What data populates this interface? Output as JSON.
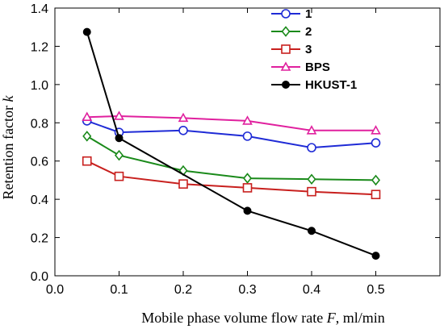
{
  "chart_data": {
    "type": "line",
    "xlabel_prefix": "Mobile phase volume flow rate ",
    "xlabel_var": "F",
    "xlabel_suffix": ", ml/min",
    "ylabel_prefix": "Retention factor ",
    "ylabel_var": "k",
    "xlim": [
      0.0,
      0.6
    ],
    "ylim": [
      0.0,
      1.4
    ],
    "xticks": [
      0.0,
      0.1,
      0.2,
      0.3,
      0.4,
      0.5
    ],
    "yticks": [
      0.0,
      0.2,
      0.4,
      0.6,
      0.8,
      1.0,
      1.2,
      1.4
    ],
    "grid": false,
    "legend_position": "top-right",
    "series": [
      {
        "name": "1",
        "color": "#1f2bd6",
        "marker": "circle-open",
        "x": [
          0.05,
          0.1,
          0.2,
          0.3,
          0.4,
          0.5
        ],
        "y": [
          0.81,
          0.75,
          0.76,
          0.73,
          0.67,
          0.695
        ]
      },
      {
        "name": "2",
        "color": "#1a8a1a",
        "marker": "diamond-open",
        "x": [
          0.05,
          0.1,
          0.2,
          0.3,
          0.4,
          0.5
        ],
        "y": [
          0.73,
          0.63,
          0.55,
          0.51,
          0.505,
          0.5
        ]
      },
      {
        "name": "3",
        "color": "#c8201e",
        "marker": "square-open",
        "x": [
          0.05,
          0.1,
          0.2,
          0.3,
          0.4,
          0.5
        ],
        "y": [
          0.6,
          0.52,
          0.48,
          0.46,
          0.44,
          0.425
        ]
      },
      {
        "name": "BPS",
        "color": "#e0209e",
        "marker": "triangle-open",
        "x": [
          0.05,
          0.1,
          0.2,
          0.3,
          0.4,
          0.5
        ],
        "y": [
          0.83,
          0.835,
          0.825,
          0.81,
          0.76,
          0.76
        ]
      },
      {
        "name": "HKUST-1",
        "color": "#000000",
        "marker": "circle-filled",
        "x": [
          0.05,
          0.1,
          0.3,
          0.4,
          0.5
        ],
        "y": [
          1.275,
          0.72,
          0.34,
          0.235,
          0.105
        ]
      }
    ]
  }
}
